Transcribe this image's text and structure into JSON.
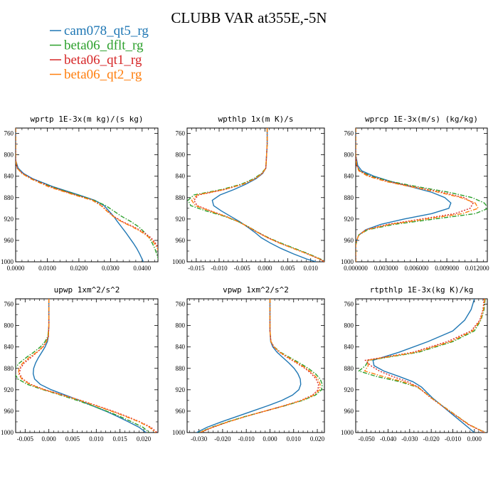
{
  "figure": {
    "title": "CLUBB VAR at355E,-5N",
    "legend": [
      {
        "name": "cam078_qt5_rg",
        "color": "#1f77b4",
        "dash": "solid"
      },
      {
        "name": "beta06_dflt_rg",
        "color": "#2ca02c",
        "dash": "dashdot"
      },
      {
        "name": "beta06_qt1_rg",
        "color": "#d62728",
        "dash": "dot"
      },
      {
        "name": "beta06_qt2_rg",
        "color": "#ff7f0e",
        "dash": "dashdot"
      }
    ]
  },
  "chart_data": [
    {
      "type": "line",
      "title": "wprtp  1E-3x(m kg)/(s kg)",
      "xlim": [
        0.0,
        0.045
      ],
      "ylim": [
        1000,
        750
      ],
      "y_inverted": true,
      "xticks": [
        0.0,
        0.01,
        0.02,
        0.03,
        0.04
      ],
      "xtick_labels": [
        "0.0000",
        "0.0100",
        "0.0200",
        "0.0300",
        "0.0400"
      ],
      "yticks": [
        760,
        800,
        840,
        880,
        920,
        960,
        1000
      ],
      "ytick_labels": [
        "760",
        "800",
        "840",
        "880",
        "920",
        "960",
        "1000"
      ],
      "y": [
        750,
        780,
        810,
        825,
        835,
        845,
        860,
        875,
        885,
        895,
        905,
        915,
        925,
        935,
        945,
        955,
        965,
        975,
        985,
        995,
        1000
      ],
      "series": [
        {
          "name": "cam078_qt5_rg",
          "x": [
            0,
            0,
            0,
            0.0008,
            0.0025,
            0.0055,
            0.012,
            0.02,
            0.025,
            0.028,
            0.0295,
            0.031,
            0.0322,
            0.0335,
            0.0348,
            0.036,
            0.0372,
            0.0383,
            0.0392,
            0.04,
            0.0404
          ]
        },
        {
          "name": "beta06_dflt_rg",
          "x": [
            0,
            0,
            0,
            0.0005,
            0.002,
            0.005,
            0.0115,
            0.0195,
            0.0248,
            0.0285,
            0.031,
            0.0335,
            0.0365,
            0.039,
            0.0408,
            0.0422,
            0.0432,
            0.044,
            0.0446,
            0.0451,
            0.0453
          ]
        },
        {
          "name": "beta06_qt1_rg",
          "x": [
            0,
            0,
            0,
            0.0005,
            0.0022,
            0.0052,
            0.0112,
            0.019,
            0.0245,
            0.0272,
            0.029,
            0.031,
            0.0338,
            0.0375,
            0.0405,
            0.0428,
            0.0442,
            0.0452,
            0.046,
            0.0466,
            0.0468
          ]
        },
        {
          "name": "beta06_qt2_rg",
          "x": [
            0,
            0,
            0,
            0.0005,
            0.002,
            0.0048,
            0.0105,
            0.0185,
            0.0242,
            0.027,
            0.0288,
            0.0308,
            0.0335,
            0.037,
            0.04,
            0.0423,
            0.0438,
            0.0448,
            0.0456,
            0.0462,
            0.0465
          ]
        }
      ]
    },
    {
      "type": "line",
      "title": "wpthlp  1x(m K)/s",
      "xlim": [
        -0.017,
        0.013
      ],
      "ylim": [
        1000,
        750
      ],
      "y_inverted": true,
      "xticks": [
        -0.015,
        -0.01,
        -0.005,
        0.0,
        0.005,
        0.01
      ],
      "xtick_labels": [
        "-0.015",
        "-0.010",
        "-0.005",
        "0.000",
        "0.005",
        "0.010"
      ],
      "yticks": [
        760,
        800,
        840,
        880,
        920,
        960,
        1000
      ],
      "ytick_labels": [
        "760",
        "800",
        "840",
        "880",
        "920",
        "960",
        "1000"
      ],
      "y": [
        750,
        780,
        810,
        825,
        835,
        845,
        855,
        865,
        875,
        885,
        895,
        905,
        915,
        925,
        935,
        945,
        955,
        965,
        975,
        985,
        995,
        1000
      ],
      "series": [
        {
          "name": "cam078_qt5_rg",
          "x": [
            0.0005,
            0.0005,
            0.0003,
            0.0002,
            -0.0005,
            -0.002,
            -0.0042,
            -0.0068,
            -0.0098,
            -0.0115,
            -0.0112,
            -0.0095,
            -0.0075,
            -0.0055,
            -0.0038,
            -0.0022,
            -0.0008,
            0.0012,
            0.0035,
            0.0062,
            0.0092,
            0.0112
          ]
        },
        {
          "name": "beta06_dflt_rg",
          "x": [
            0.0005,
            0.0005,
            0.0003,
            0.0002,
            -0.0008,
            -0.0025,
            -0.0052,
            -0.0095,
            -0.0155,
            -0.0168,
            -0.0162,
            -0.0128,
            -0.0088,
            -0.0058,
            -0.0035,
            -0.0015,
            0.0008,
            0.0035,
            0.0065,
            0.0095,
            0.0122,
            0.0132
          ]
        },
        {
          "name": "beta06_qt1_rg",
          "x": [
            0.0005,
            0.0005,
            0.0003,
            0.0002,
            -0.0006,
            -0.0022,
            -0.0048,
            -0.0088,
            -0.0145,
            -0.0155,
            -0.0148,
            -0.0118,
            -0.0085,
            -0.0058,
            -0.0036,
            -0.0016,
            0.0006,
            0.0032,
            0.0062,
            0.0092,
            0.012,
            0.013
          ]
        },
        {
          "name": "beta06_qt2_rg",
          "x": [
            0.0005,
            0.0005,
            0.0003,
            0.0002,
            -0.0006,
            -0.0022,
            -0.0048,
            -0.009,
            -0.0148,
            -0.016,
            -0.0152,
            -0.012,
            -0.0086,
            -0.0058,
            -0.0036,
            -0.0016,
            0.0006,
            0.0032,
            0.0062,
            0.0092,
            0.012,
            0.013
          ]
        }
      ]
    },
    {
      "type": "line",
      "title": "wprcp  1E-3x(m/s) (kg/kg)",
      "xlim": [
        0.0,
        0.013
      ],
      "ylim": [
        1000,
        750
      ],
      "y_inverted": true,
      "xticks": [
        0.0,
        0.003,
        0.006,
        0.009,
        0.012
      ],
      "xtick_labels": [
        "0.000000",
        "0.003000",
        "0.006000",
        "0.009000",
        "0.012000"
      ],
      "yticks": [
        760,
        800,
        840,
        880,
        920,
        960,
        1000
      ],
      "ytick_labels": [
        "760",
        "800",
        "840",
        "880",
        "920",
        "960",
        "1000"
      ],
      "y": [
        750,
        800,
        820,
        830,
        840,
        850,
        860,
        870,
        880,
        890,
        900,
        910,
        920,
        930,
        940,
        950,
        960,
        970,
        1000
      ],
      "series": [
        {
          "name": "cam078_qt5_rg",
          "x": [
            0,
            0,
            0.0002,
            0.0006,
            0.0018,
            0.0035,
            0.0055,
            0.0075,
            0.0088,
            0.0094,
            0.0092,
            0.0075,
            0.0048,
            0.0025,
            0.001,
            0.0003,
            0.0001,
            0,
            0
          ]
        },
        {
          "name": "beta06_dflt_rg",
          "x": [
            0,
            0,
            0.0001,
            0.0004,
            0.0015,
            0.0035,
            0.0062,
            0.0092,
            0.0115,
            0.0127,
            0.0131,
            0.0118,
            0.0078,
            0.0038,
            0.0012,
            0.0003,
            0.0001,
            0,
            0
          ]
        },
        {
          "name": "beta06_qt1_rg",
          "x": [
            0,
            0,
            0.0001,
            0.0004,
            0.0014,
            0.0032,
            0.0058,
            0.0085,
            0.0107,
            0.0116,
            0.0113,
            0.0098,
            0.0065,
            0.0032,
            0.001,
            0.0003,
            0.0001,
            0,
            0
          ]
        },
        {
          "name": "beta06_qt2_rg",
          "x": [
            0,
            0,
            0.0001,
            0.0003,
            0.0012,
            0.003,
            0.0055,
            0.0082,
            0.0104,
            0.0118,
            0.0121,
            0.0105,
            0.007,
            0.0034,
            0.0011,
            0.0003,
            0.0001,
            0,
            0
          ]
        }
      ]
    },
    {
      "type": "line",
      "title": "upwp  1xm^2/s^2",
      "xlim": [
        -0.007,
        0.023
      ],
      "ylim": [
        1000,
        750
      ],
      "y_inverted": true,
      "xticks": [
        -0.005,
        0.0,
        0.005,
        0.01,
        0.015,
        0.02
      ],
      "xtick_labels": [
        "-0.005",
        "0.000",
        "0.005",
        "0.010",
        "0.015",
        "0.020"
      ],
      "yticks": [
        760,
        800,
        840,
        880,
        920,
        960,
        1000
      ],
      "ytick_labels": [
        "760",
        "800",
        "840",
        "880",
        "920",
        "960",
        "1000"
      ],
      "y": [
        750,
        800,
        820,
        830,
        840,
        850,
        860,
        870,
        880,
        890,
        900,
        910,
        920,
        930,
        940,
        950,
        960,
        970,
        980,
        990,
        1000
      ],
      "series": [
        {
          "name": "cam078_qt5_rg",
          "x": [
            0.0,
            0.0,
            -0.0001,
            -0.0003,
            -0.0008,
            -0.0015,
            -0.0022,
            -0.0028,
            -0.0032,
            -0.0033,
            -0.003,
            -0.0018,
            0.0005,
            0.0035,
            0.0065,
            0.0092,
            0.012,
            0.0145,
            0.0168,
            0.019,
            0.0205
          ]
        },
        {
          "name": "beta06_dflt_rg",
          "x": [
            0.0,
            0.0,
            -0.0002,
            -0.0008,
            -0.0018,
            -0.0032,
            -0.0048,
            -0.0062,
            -0.0072,
            -0.0072,
            -0.0065,
            -0.0045,
            -0.0012,
            0.0025,
            0.006,
            0.0092,
            0.0122,
            0.015,
            0.0175,
            0.0198,
            0.0212
          ]
        },
        {
          "name": "beta06_qt1_rg",
          "x": [
            0.0,
            0.0,
            -0.0001,
            -0.0005,
            -0.0012,
            -0.0025,
            -0.0038,
            -0.0052,
            -0.006,
            -0.0062,
            -0.0055,
            -0.0038,
            -0.0008,
            0.003,
            0.0068,
            0.0102,
            0.0135,
            0.0165,
            0.0192,
            0.0215,
            0.0228
          ]
        },
        {
          "name": "beta06_qt2_rg",
          "x": [
            0.0,
            0.0,
            -0.0001,
            -0.0005,
            -0.0013,
            -0.0026,
            -0.0042,
            -0.0055,
            -0.0063,
            -0.0064,
            -0.0057,
            -0.004,
            -0.001,
            0.0028,
            0.0066,
            0.01,
            0.0132,
            0.0162,
            0.019,
            0.0212,
            0.0225
          ]
        }
      ]
    },
    {
      "type": "line",
      "title": "vpwp  1xm^2/s^2",
      "xlim": [
        -0.035,
        0.023
      ],
      "ylim": [
        1000,
        750
      ],
      "y_inverted": true,
      "xticks": [
        -0.03,
        -0.02,
        -0.01,
        0.0,
        0.01,
        0.02
      ],
      "xtick_labels": [
        "-0.030",
        "-0.020",
        "-0.010",
        "0.000",
        "0.010",
        "0.020"
      ],
      "yticks": [
        760,
        800,
        840,
        880,
        920,
        960,
        1000
      ],
      "ytick_labels": [
        "760",
        "800",
        "840",
        "880",
        "920",
        "960",
        "1000"
      ],
      "y": [
        750,
        810,
        830,
        840,
        850,
        860,
        870,
        880,
        890,
        900,
        910,
        920,
        930,
        940,
        950,
        960,
        970,
        980,
        990,
        1000
      ],
      "series": [
        {
          "name": "cam078_qt5_rg",
          "x": [
            0.0,
            0.0,
            0.0003,
            0.0012,
            0.003,
            0.0055,
            0.008,
            0.0102,
            0.0118,
            0.0128,
            0.013,
            0.0122,
            0.0095,
            0.005,
            -0.001,
            -0.0075,
            -0.014,
            -0.0205,
            -0.0265,
            -0.031
          ]
        },
        {
          "name": "beta06_dflt_rg",
          "x": [
            0.0,
            0.0,
            0.0004,
            0.0018,
            0.0045,
            0.0085,
            0.0125,
            0.0162,
            0.0192,
            0.0212,
            0.0221,
            0.0218,
            0.0192,
            0.0138,
            0.0062,
            -0.0022,
            -0.0105,
            -0.018,
            -0.0245,
            -0.03
          ]
        },
        {
          "name": "beta06_qt1_rg",
          "x": [
            0.0,
            0.0,
            0.0004,
            0.0016,
            0.004,
            0.0075,
            0.0112,
            0.0148,
            0.0175,
            0.0195,
            0.0205,
            0.0203,
            0.018,
            0.013,
            0.0058,
            -0.0022,
            -0.0102,
            -0.0175,
            -0.024,
            -0.0295
          ]
        },
        {
          "name": "beta06_qt2_rg",
          "x": [
            0.0,
            0.0,
            0.0004,
            0.0017,
            0.0042,
            0.0079,
            0.0117,
            0.0153,
            0.0182,
            0.0202,
            0.0212,
            0.021,
            0.0186,
            0.0134,
            0.006,
            -0.0022,
            -0.0103,
            -0.0177,
            -0.0242,
            -0.0297
          ]
        }
      ]
    },
    {
      "type": "line",
      "title": "rtpthlp  1E-3x(kg K)/kg",
      "xlim": [
        -0.055,
        0.006
      ],
      "ylim": [
        1000,
        750
      ],
      "y_inverted": true,
      "xticks": [
        -0.05,
        -0.04,
        -0.03,
        -0.02,
        -0.01,
        0.0
      ],
      "xtick_labels": [
        "-0.050",
        "-0.040",
        "-0.030",
        "-0.020",
        "-0.010",
        "0.000"
      ],
      "yticks": [
        760,
        800,
        840,
        880,
        920,
        960,
        1000
      ],
      "ytick_labels": [
        "760",
        "800",
        "840",
        "880",
        "920",
        "960",
        "1000"
      ],
      "y": [
        750,
        770,
        790,
        810,
        830,
        850,
        865,
        875,
        885,
        895,
        905,
        915,
        925,
        935,
        945,
        955,
        965,
        975,
        985,
        995,
        1000
      ],
      "series": [
        {
          "name": "cam078_qt5_rg",
          "x": [
            0.0,
            -0.0015,
            -0.0045,
            -0.01,
            -0.0215,
            -0.035,
            -0.047,
            -0.0465,
            -0.042,
            -0.035,
            -0.0285,
            -0.0245,
            -0.022,
            -0.0195,
            -0.0165,
            -0.0135,
            -0.0105,
            -0.0075,
            -0.0045,
            -0.0015,
            0.0
          ]
        },
        {
          "name": "beta06_dflt_rg",
          "x": [
            0.005,
            0.0045,
            0.003,
            0.0,
            -0.01,
            -0.026,
            -0.049,
            -0.0505,
            -0.0535,
            -0.0455,
            -0.0345,
            -0.0265,
            -0.023,
            -0.02,
            -0.0165,
            -0.013,
            -0.0095,
            -0.006,
            -0.0025,
            0.0025,
            0.005
          ]
        },
        {
          "name": "beta06_qt1_rg",
          "x": [
            0.0045,
            0.004,
            0.0025,
            -0.0015,
            -0.0125,
            -0.0285,
            -0.0505,
            -0.048,
            -0.044,
            -0.038,
            -0.031,
            -0.026,
            -0.0232,
            -0.0202,
            -0.0168,
            -0.0133,
            -0.0098,
            -0.0063,
            -0.0028,
            0.0022,
            0.0045
          ]
        },
        {
          "name": "beta06_qt2_rg",
          "x": [
            0.0048,
            0.0042,
            0.0028,
            -0.0008,
            -0.011,
            -0.0272,
            -0.0495,
            -0.0492,
            -0.0508,
            -0.0425,
            -0.033,
            -0.0262,
            -0.0231,
            -0.0201,
            -0.0166,
            -0.0131,
            -0.0096,
            -0.0061,
            -0.0026,
            0.0024,
            0.0048
          ]
        }
      ]
    }
  ]
}
